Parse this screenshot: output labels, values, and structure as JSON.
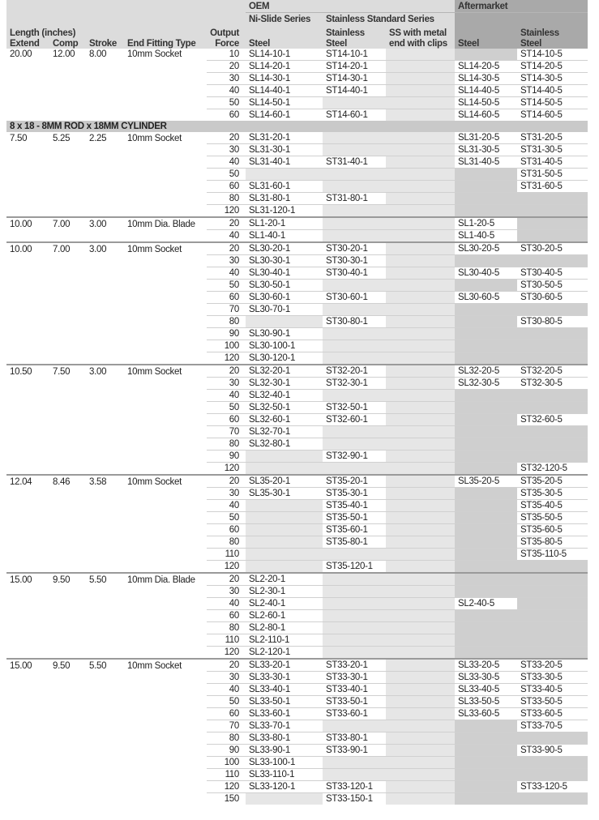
{
  "header": {
    "oem": "OEM",
    "aftermarket": "Aftermarket",
    "ni_slide_series": "Ni-Slide Series",
    "stainless_standard_series": "Stainless Standard Series",
    "length_inches": "Length (inches)",
    "extend": "Extend",
    "comp": "Comp",
    "stroke": "Stroke",
    "end_fitting_type": "End Fitting Type",
    "output": "Output",
    "force": "Force",
    "steel": "Steel",
    "stainless": "Stainless",
    "stainless_steel_2": "Steel",
    "ss_metal_1": "SS with metal",
    "ss_metal_2": "end with clips",
    "am_steel": "Steel",
    "am_stainless": "Stainless",
    "am_stainless_2": "Steel"
  },
  "section_banner": "8 x 18 - 8MM ROD x 18MM CYLINDER",
  "groups": [
    {
      "extend": "20.00",
      "comp": "12.00",
      "stroke": "8.00",
      "fitting": "10mm Socket",
      "rows": [
        [
          "10",
          "SL14-10-1",
          "ST14-10-1",
          "",
          "",
          "ST14-10-5"
        ],
        [
          "20",
          "SL14-20-1",
          "ST14-20-1",
          "",
          "SL14-20-5",
          "ST14-20-5"
        ],
        [
          "30",
          "SL14-30-1",
          "ST14-30-1",
          "",
          "SL14-30-5",
          "ST14-30-5"
        ],
        [
          "40",
          "SL14-40-1",
          "ST14-40-1",
          "",
          "SL14-40-5",
          "ST14-40-5"
        ],
        [
          "50",
          "SL14-50-1",
          "",
          "",
          "SL14-50-5",
          "ST14-50-5"
        ],
        [
          "60",
          "SL14-60-1",
          "ST14-60-1",
          "",
          "SL14-60-5",
          "ST14-60-5"
        ]
      ]
    },
    {
      "extend": "7.50",
      "comp": "5.25",
      "stroke": "2.25",
      "fitting": "10mm Socket",
      "rows": [
        [
          "20",
          "SL31-20-1",
          "",
          "",
          "SL31-20-5",
          "ST31-20-5"
        ],
        [
          "30",
          "SL31-30-1",
          "",
          "",
          "SL31-30-5",
          "ST31-30-5"
        ],
        [
          "40",
          "SL31-40-1",
          "ST31-40-1",
          "",
          "SL31-40-5",
          "ST31-40-5"
        ],
        [
          "50",
          "",
          "",
          "",
          "",
          "ST31-50-5"
        ],
        [
          "60",
          "SL31-60-1",
          "",
          "",
          "",
          "ST31-60-5"
        ],
        [
          "80",
          "SL31-80-1",
          "ST31-80-1",
          "",
          "",
          ""
        ],
        [
          "120",
          "SL31-120-1",
          "",
          "",
          "",
          ""
        ]
      ]
    },
    {
      "extend": "10.00",
      "comp": "7.00",
      "stroke": "3.00",
      "fitting": "10mm Dia. Blade",
      "rows": [
        [
          "20",
          "SL1-20-1",
          "",
          "",
          "SL1-20-5",
          ""
        ],
        [
          "40",
          "SL1-40-1",
          "",
          "",
          "SL1-40-5",
          ""
        ]
      ]
    },
    {
      "extend": "10.00",
      "comp": "7.00",
      "stroke": "3.00",
      "fitting": "10mm Socket",
      "rows": [
        [
          "20",
          "SL30-20-1",
          "ST30-20-1",
          "",
          "SL30-20-5",
          "ST30-20-5"
        ],
        [
          "30",
          "SL30-30-1",
          "ST30-30-1",
          "",
          "",
          ""
        ],
        [
          "40",
          "SL30-40-1",
          "ST30-40-1",
          "",
          "SL30-40-5",
          "ST30-40-5"
        ],
        [
          "50",
          "SL30-50-1",
          "",
          "",
          "",
          "ST30-50-5"
        ],
        [
          "60",
          "SL30-60-1",
          "ST30-60-1",
          "",
          "SL30-60-5",
          "ST30-60-5"
        ],
        [
          "70",
          "SL30-70-1",
          "",
          "",
          "",
          ""
        ],
        [
          "80",
          "",
          "ST30-80-1",
          "",
          "",
          "ST30-80-5"
        ],
        [
          "90",
          "SL30-90-1",
          "",
          "",
          "",
          ""
        ],
        [
          "100",
          "SL30-100-1",
          "",
          "",
          "",
          ""
        ],
        [
          "120",
          "SL30-120-1",
          "",
          "",
          "",
          ""
        ]
      ]
    },
    {
      "extend": "10.50",
      "comp": "7.50",
      "stroke": "3.00",
      "fitting": "10mm Socket",
      "rows": [
        [
          "20",
          "SL32-20-1",
          "ST32-20-1",
          "",
          "SL32-20-5",
          "ST32-20-5"
        ],
        [
          "30",
          "SL32-30-1",
          "ST32-30-1",
          "",
          "SL32-30-5",
          "ST32-30-5"
        ],
        [
          "40",
          "SL32-40-1",
          "",
          "",
          "",
          ""
        ],
        [
          "50",
          "SL32-50-1",
          "ST32-50-1",
          "",
          "",
          ""
        ],
        [
          "60",
          "SL32-60-1",
          "ST32-60-1",
          "",
          "",
          "ST32-60-5"
        ],
        [
          "70",
          "SL32-70-1",
          "",
          "",
          "",
          ""
        ],
        [
          "80",
          "SL32-80-1",
          "",
          "",
          "",
          ""
        ],
        [
          "90",
          "",
          "ST32-90-1",
          "",
          "",
          ""
        ],
        [
          "120",
          "",
          "",
          "",
          "",
          "ST32-120-5"
        ]
      ]
    },
    {
      "extend": "12.04",
      "comp": "8.46",
      "stroke": "3.58",
      "fitting": "10mm Socket",
      "rows": [
        [
          "20",
          "SL35-20-1",
          "ST35-20-1",
          "",
          "SL35-20-5",
          "ST35-20-5"
        ],
        [
          "30",
          "SL35-30-1",
          "ST35-30-1",
          "",
          "",
          "ST35-30-5"
        ],
        [
          "40",
          "",
          "ST35-40-1",
          "",
          "",
          "ST35-40-5"
        ],
        [
          "50",
          "",
          "ST35-50-1",
          "",
          "",
          "ST35-50-5"
        ],
        [
          "60",
          "",
          "ST35-60-1",
          "",
          "",
          "ST35-60-5"
        ],
        [
          "80",
          "",
          "ST35-80-1",
          "",
          "",
          "ST35-80-5"
        ],
        [
          "110",
          "",
          "",
          "",
          "",
          "ST35-110-5"
        ],
        [
          "120",
          "",
          "ST35-120-1",
          "",
          "",
          ""
        ]
      ]
    },
    {
      "extend": "15.00",
      "comp": "9.50",
      "stroke": "5.50",
      "fitting": "10mm Dia. Blade",
      "rows": [
        [
          "20",
          "SL2-20-1",
          "",
          "",
          "",
          ""
        ],
        [
          "30",
          "SL2-30-1",
          "",
          "",
          "",
          ""
        ],
        [
          "40",
          "SL2-40-1",
          "",
          "",
          "SL2-40-5",
          ""
        ],
        [
          "60",
          "SL2-60-1",
          "",
          "",
          "",
          ""
        ],
        [
          "80",
          "SL2-80-1",
          "",
          "",
          "",
          ""
        ],
        [
          "110",
          "SL2-110-1",
          "",
          "",
          "",
          ""
        ],
        [
          "120",
          "SL2-120-1",
          "",
          "",
          "",
          ""
        ]
      ]
    },
    {
      "extend": "15.00",
      "comp": "9.50",
      "stroke": "5.50",
      "fitting": "10mm Socket",
      "rows": [
        [
          "20",
          "SL33-20-1",
          "ST33-20-1",
          "",
          "SL33-20-5",
          "ST33-20-5"
        ],
        [
          "30",
          "SL33-30-1",
          "ST33-30-1",
          "",
          "SL33-30-5",
          "ST33-30-5"
        ],
        [
          "40",
          "SL33-40-1",
          "ST33-40-1",
          "",
          "SL33-40-5",
          "ST33-40-5"
        ],
        [
          "50",
          "SL33-50-1",
          "ST33-50-1",
          "",
          "SL33-50-5",
          "ST33-50-5"
        ],
        [
          "60",
          "SL33-60-1",
          "ST33-60-1",
          "",
          "SL33-60-5",
          "ST33-60-5"
        ],
        [
          "70",
          "SL33-70-1",
          "",
          "",
          "",
          "ST33-70-5"
        ],
        [
          "80",
          "SL33-80-1",
          "ST33-80-1",
          "",
          "",
          ""
        ],
        [
          "90",
          "SL33-90-1",
          "ST33-90-1",
          "",
          "",
          "ST33-90-5"
        ],
        [
          "100",
          "SL33-100-1",
          "",
          "",
          "",
          ""
        ],
        [
          "110",
          "SL33-110-1",
          "",
          "",
          "",
          ""
        ],
        [
          "120",
          "SL33-120-1",
          "ST33-120-1",
          "",
          "",
          "ST33-120-5"
        ],
        [
          "150",
          "",
          "ST33-150-1",
          "",
          "",
          ""
        ]
      ]
    }
  ]
}
